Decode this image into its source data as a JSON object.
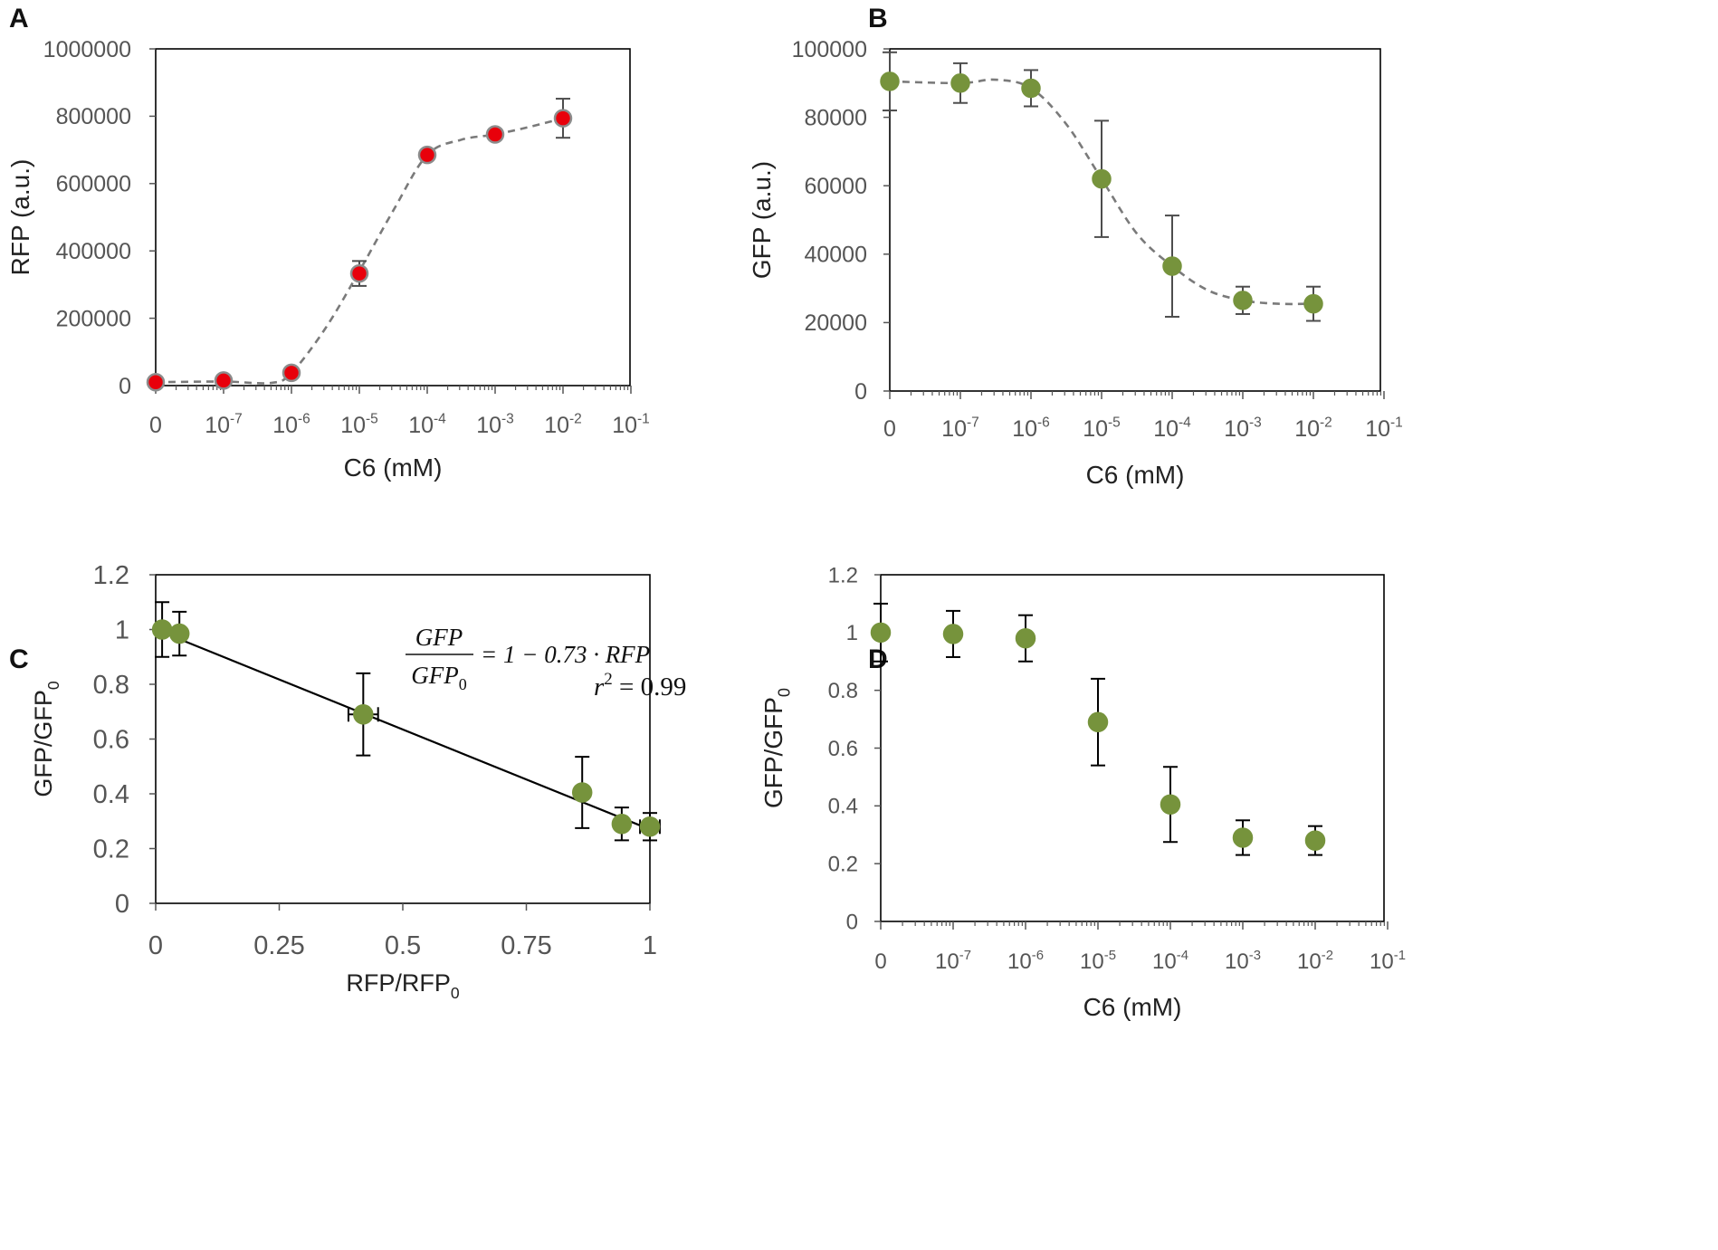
{
  "chart_data": [
    {
      "id": "A",
      "panel_label": "A",
      "type": "scatter",
      "title": "",
      "xlabel": "C6 (mM)",
      "ylabel": "RFP (a.u.)",
      "xscale": "log (0 placed one decade left of 10^-7)",
      "x_ticks": [
        {
          "base": "0",
          "exp": ""
        },
        {
          "base": "10",
          "exp": "-7"
        },
        {
          "base": "10",
          "exp": "-6"
        },
        {
          "base": "10",
          "exp": "-5"
        },
        {
          "base": "10",
          "exp": "-4"
        },
        {
          "base": "10",
          "exp": "-3"
        },
        {
          "base": "10",
          "exp": "-2"
        },
        {
          "base": "10",
          "exp": "-1"
        }
      ],
      "x_positions": [
        0,
        1,
        2,
        3,
        4,
        5,
        6,
        7
      ],
      "ylim": [
        0,
        1000000
      ],
      "y_ticks": [
        0,
        200000,
        400000,
        600000,
        800000,
        1000000
      ],
      "y_tick_labels": [
        "0",
        "200000",
        "400000",
        "600000",
        "800000",
        "1000000"
      ],
      "marker_color": "#e8000b",
      "marker_edge": "#8c8c8c",
      "fit_color": "#7a7a7a",
      "series": [
        {
          "name": "RFP",
          "x": [
            0,
            1,
            2,
            3,
            4,
            5,
            6
          ],
          "y": [
            10000,
            15000,
            38000,
            333000,
            685000,
            746000,
            794000
          ],
          "err": [
            3000,
            4000,
            6000,
            37000,
            10000,
            15000,
            58000
          ]
        }
      ],
      "fit": {
        "style": "dashed",
        "x": [
          0,
          1,
          1.7,
          2,
          2.5,
          3,
          3.5,
          4,
          4.5,
          5,
          5.5,
          6
        ],
        "y": [
          10000,
          12000,
          8000,
          38000,
          170000,
          340000,
          520000,
          685000,
          730000,
          746000,
          768000,
          794000
        ]
      }
    },
    {
      "id": "B",
      "panel_label": "B",
      "type": "scatter",
      "title": "",
      "xlabel": "C6 (mM)",
      "ylabel": "GFP (a.u.)",
      "xscale": "log (0 placed one decade left of 10^-7)",
      "x_ticks": [
        {
          "base": "0",
          "exp": ""
        },
        {
          "base": "10",
          "exp": "-7"
        },
        {
          "base": "10",
          "exp": "-6"
        },
        {
          "base": "10",
          "exp": "-5"
        },
        {
          "base": "10",
          "exp": "-4"
        },
        {
          "base": "10",
          "exp": "-3"
        },
        {
          "base": "10",
          "exp": "-2"
        },
        {
          "base": "10",
          "exp": "-1"
        }
      ],
      "x_positions": [
        0,
        1,
        2,
        3,
        4,
        5,
        6,
        7
      ],
      "ylim": [
        0,
        100000
      ],
      "y_ticks": [
        0,
        20000,
        40000,
        60000,
        80000,
        100000
      ],
      "y_tick_labels": [
        "0",
        "20000",
        "40000",
        "60000",
        "80000",
        "100000"
      ],
      "marker_color": "#76933c",
      "marker_edge": "#76933c",
      "fit_color": "#7a7a7a",
      "series": [
        {
          "name": "GFP",
          "x": [
            0,
            1,
            2,
            3,
            4,
            5,
            6
          ],
          "y": [
            90500,
            90000,
            88500,
            62000,
            36500,
            26500,
            25500
          ],
          "err": [
            8500,
            5800,
            5300,
            17000,
            14800,
            4000,
            5000
          ]
        }
      ],
      "fit": {
        "style": "dashed",
        "x": [
          0,
          1,
          1.5,
          2,
          2.5,
          3,
          3.5,
          4,
          4.5,
          5,
          5.5,
          6
        ],
        "y": [
          90500,
          90000,
          91000,
          88500,
          78000,
          62000,
          46000,
          36500,
          29500,
          26500,
          25500,
          25500
        ]
      }
    },
    {
      "id": "C",
      "panel_label": "C",
      "type": "scatter",
      "title": "",
      "xlabel": "RFP/RFP",
      "xlabel_sub": "0",
      "ylabel": "GFP/GFP",
      "ylabel_sub": "0",
      "xlim": [
        0,
        1
      ],
      "ylim": [
        0,
        1.2
      ],
      "x_ticks": [
        0,
        0.25,
        0.5,
        0.75,
        1
      ],
      "x_tick_labels": [
        "0",
        "0.25",
        "0.5",
        "0.75",
        "1"
      ],
      "y_ticks": [
        0,
        0.2,
        0.4,
        0.6,
        0.8,
        1,
        1.2
      ],
      "y_tick_labels": [
        "0",
        "0.2",
        "0.4",
        "0.6",
        "0.8",
        "1",
        "1.2"
      ],
      "marker_color": "#76933c",
      "marker_edge": "#76933c",
      "fit_color": "#000000",
      "series": [
        {
          "name": "GFP/GFP0 vs RFP/RFP0",
          "x": [
            0.013,
            0.048,
            0.42,
            0.863,
            0.943,
            1.0
          ],
          "y": [
            1.0,
            0.985,
            0.69,
            0.405,
            0.29,
            0.28
          ],
          "yerr": [
            0.1,
            0.08,
            0.15,
            0.13,
            0.06,
            0.05
          ],
          "xerr": [
            0.01,
            0.0,
            0.03,
            0.0,
            0.0,
            0.02
          ]
        }
      ],
      "fit": {
        "style": "solid",
        "x": [
          0,
          1
        ],
        "y": [
          1.0,
          0.27
        ]
      },
      "annotations": {
        "eq_numerator": "GFP",
        "eq_denominator": "GFP",
        "eq_denominator_sub": "0",
        "eq_rhs": "= 1 − 0.73 · RFP",
        "r2_lhs": "r",
        "r2_sup": "2",
        "r2_rhs": "= 0.99"
      }
    },
    {
      "id": "D",
      "panel_label": "D",
      "type": "scatter",
      "title": "",
      "xlabel": "C6 (mM)",
      "ylabel": "GFP/GFP",
      "ylabel_sub": "0",
      "xscale": "log (0 placed one decade left of 10^-7)",
      "x_ticks": [
        {
          "base": "0",
          "exp": ""
        },
        {
          "base": "10",
          "exp": "-7"
        },
        {
          "base": "10",
          "exp": "-6"
        },
        {
          "base": "10",
          "exp": "-5"
        },
        {
          "base": "10",
          "exp": "-4"
        },
        {
          "base": "10",
          "exp": "-3"
        },
        {
          "base": "10",
          "exp": "-2"
        },
        {
          "base": "10",
          "exp": "-1"
        }
      ],
      "x_positions": [
        0,
        1,
        2,
        3,
        4,
        5,
        6,
        7
      ],
      "ylim": [
        0,
        1.2
      ],
      "y_ticks": [
        0,
        0.2,
        0.4,
        0.6,
        0.8,
        1,
        1.2
      ],
      "y_tick_labels": [
        "0",
        "0.2",
        "0.4",
        "0.6",
        "0.8",
        "1",
        "1.2"
      ],
      "marker_color": "#76933c",
      "marker_edge": "#76933c",
      "series": [
        {
          "name": "GFP/GFP0",
          "x": [
            0,
            1,
            2,
            3,
            4,
            5,
            6
          ],
          "y": [
            1.0,
            0.995,
            0.98,
            0.69,
            0.405,
            0.29,
            0.28
          ],
          "err": [
            0.1,
            0.08,
            0.08,
            0.15,
            0.13,
            0.06,
            0.05
          ]
        }
      ]
    }
  ]
}
